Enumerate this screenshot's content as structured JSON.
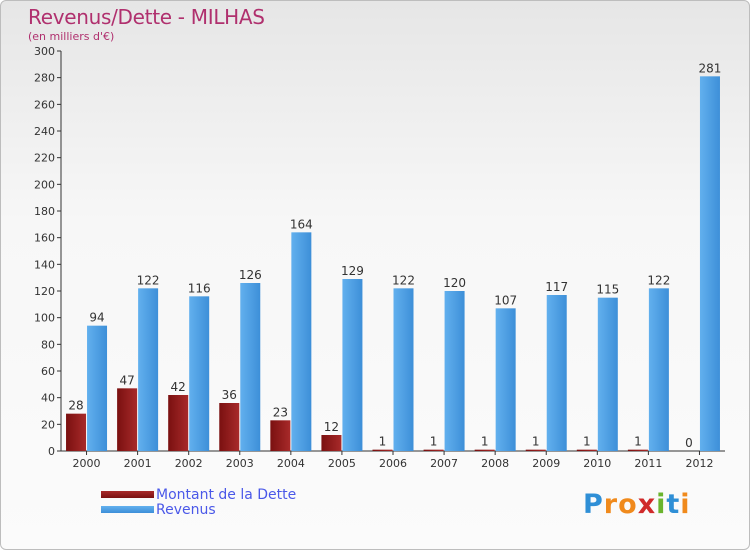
{
  "colors": {
    "debt": "#7a1010",
    "debt_light": "#a82a2a",
    "revenue": "#3d8fd8",
    "revenue_light": "#62b0ee",
    "title": "#b0306e",
    "legend_text": "#4a58e8",
    "axis": "#333333"
  },
  "chart_data": {
    "type": "bar",
    "title": "Revenus/Dette - MILHAS",
    "subtitle": "(en milliers d'€)",
    "xlabel": "",
    "ylabel": "",
    "ylim": [
      0,
      300
    ],
    "y_ticks": [
      0,
      20,
      40,
      60,
      80,
      100,
      120,
      140,
      160,
      180,
      200,
      220,
      240,
      260,
      280,
      300
    ],
    "categories": [
      "2000",
      "2001",
      "2002",
      "2003",
      "2004",
      "2005",
      "2006",
      "2007",
      "2008",
      "2009",
      "2010",
      "2011",
      "2012"
    ],
    "series": [
      {
        "name": "Montant de la Dette",
        "values": [
          28,
          47,
          42,
          36,
          23,
          12,
          1,
          1,
          1,
          1,
          1,
          1,
          0
        ]
      },
      {
        "name": "Revenus",
        "values": [
          94,
          122,
          116,
          126,
          164,
          129,
          122,
          120,
          107,
          117,
          115,
          122,
          281
        ]
      }
    ],
    "legend_position": "bottom-left"
  },
  "logo": {
    "letters": [
      {
        "ch": "P",
        "color": "#2f8fd6"
      },
      {
        "ch": "r",
        "color": "#f08a1c"
      },
      {
        "ch": "o",
        "color": "#f08a1c"
      },
      {
        "ch": "x",
        "color": "#d02a2a"
      },
      {
        "ch": "i",
        "color": "#6ab42d"
      },
      {
        "ch": "t",
        "color": "#2f8fd6"
      },
      {
        "ch": "i",
        "color": "#f08a1c"
      }
    ]
  }
}
